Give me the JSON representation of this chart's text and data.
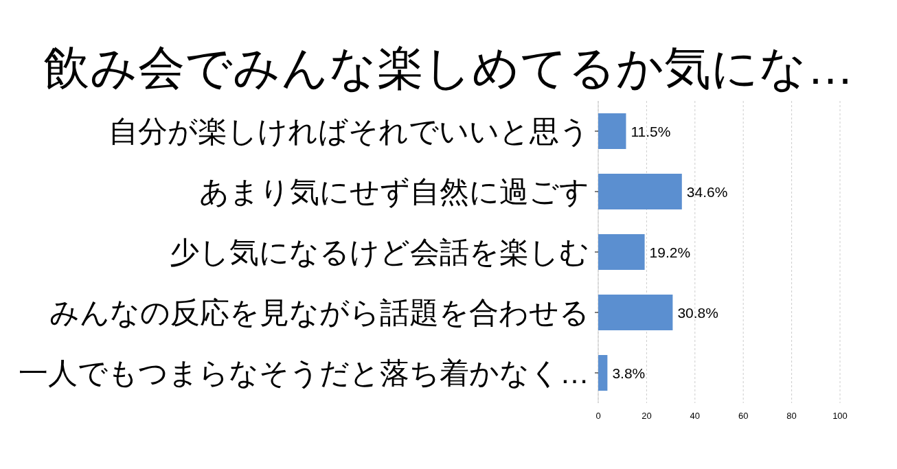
{
  "chart_data": {
    "type": "bar",
    "orientation": "horizontal",
    "title": "飲み会でみんな楽しめてるか気にな…",
    "categories": [
      "自分が楽しければそれでいいと思う",
      "あまり気にせず自然に過ごす",
      "少し気になるけど会話を楽しむ",
      "みんなの反応を見ながら話題を合わせる",
      "一人でもつまらなそうだと落ち着かなく…"
    ],
    "values": [
      11.5,
      34.6,
      19.2,
      30.8,
      3.8
    ],
    "value_labels": [
      "11.5%",
      "34.6%",
      "19.2%",
      "30.8%",
      "3.8%"
    ],
    "color": "#5b8fd0",
    "xlim": [
      0,
      100
    ],
    "xticks": [
      0,
      20,
      40,
      60,
      80,
      100
    ],
    "grid": "x"
  }
}
